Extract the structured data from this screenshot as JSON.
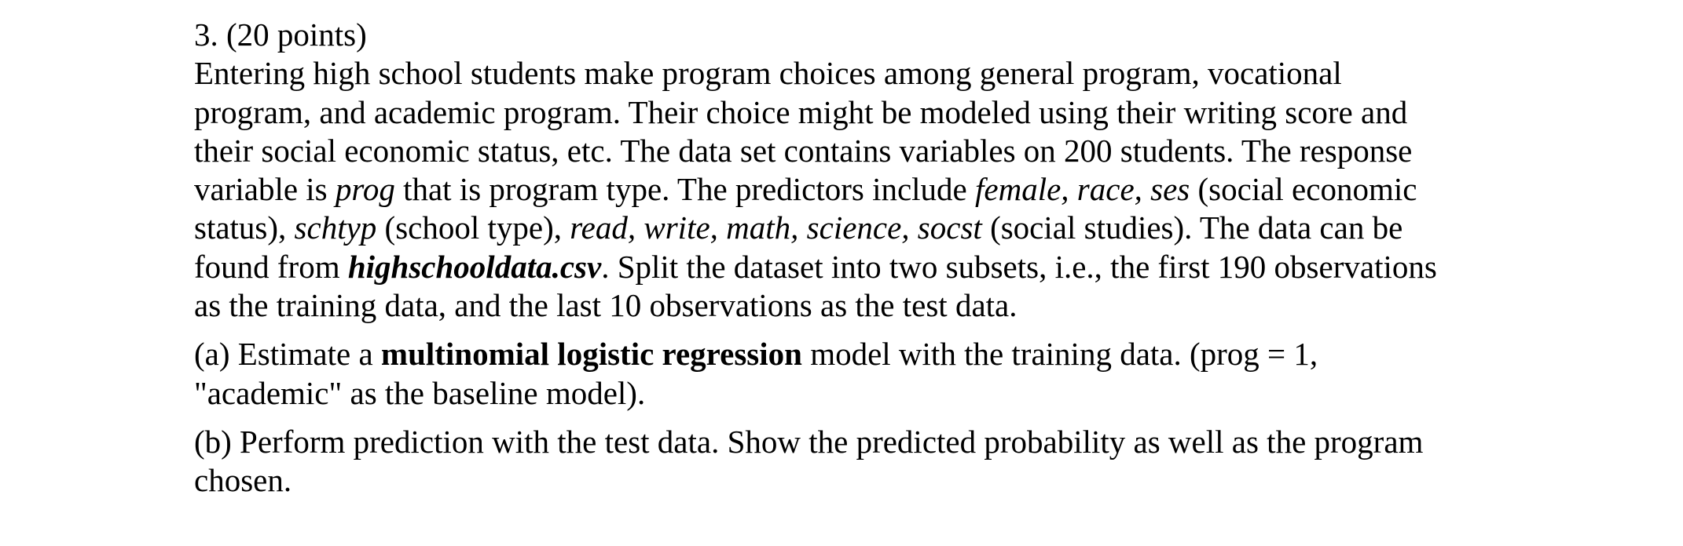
{
  "question": {
    "header": "3. (20 points)",
    "intro_lines": [
      [
        {
          "t": "Entering high school students make program choices among general program, vocational"
        }
      ],
      [
        {
          "t": "program, and academic program. Their choice might be modeled using their writing score and"
        }
      ],
      [
        {
          "t": "their social economic status, etc. The data set contains variables on 200 students. The response"
        }
      ],
      [
        {
          "t": "variable is "
        },
        {
          "t": "prog",
          "s": "i"
        },
        {
          "t": " that is program type. The predictors include "
        },
        {
          "t": "female, race, ses",
          "s": "i"
        },
        {
          "t": " (social economic"
        }
      ],
      [
        {
          "t": "status), "
        },
        {
          "t": "schtyp",
          "s": "i"
        },
        {
          "t": " (school type), "
        },
        {
          "t": "read, write, math, science, socst",
          "s": "i"
        },
        {
          "t": " (social studies). The data can be"
        }
      ],
      [
        {
          "t": "found from "
        },
        {
          "t": "highschooldata.csv",
          "s": "bi"
        },
        {
          "t": ". Split the dataset into two subsets, i.e., the first 190 observations"
        }
      ],
      [
        {
          "t": "as the training data, and the last 10 observations as the test data."
        }
      ]
    ],
    "parts": [
      {
        "lines": [
          [
            {
              "t": "(a) Estimate a "
            },
            {
              "t": "multinomial logistic regression",
              "s": "b"
            },
            {
              "t": " model with the training data. (prog = 1,"
            }
          ],
          [
            {
              "t": "\"academic\" as the baseline model)."
            }
          ]
        ]
      },
      {
        "lines": [
          [
            {
              "t": "(b) Perform prediction with the test data. Show the predicted probability as well as the program"
            }
          ],
          [
            {
              "t": "chosen."
            }
          ]
        ]
      }
    ]
  }
}
